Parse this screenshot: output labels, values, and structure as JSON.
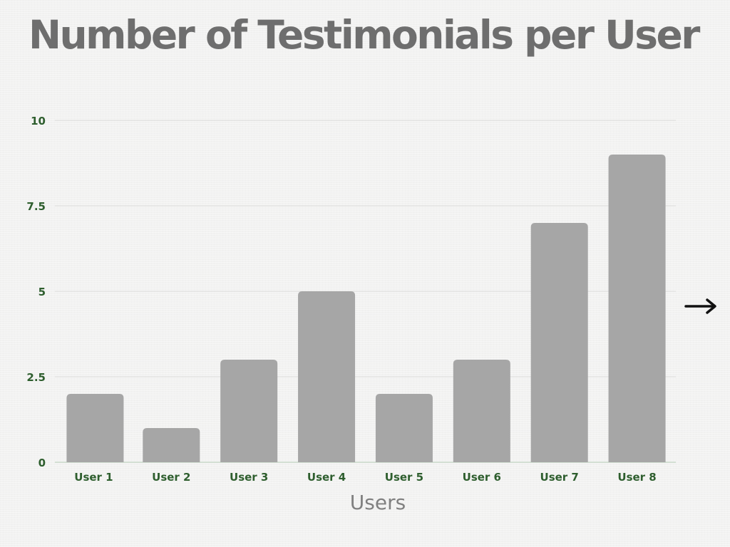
{
  "chart_data": {
    "type": "bar",
    "title": "Number of Testimonials per User",
    "xlabel": "Users",
    "ylabel": "",
    "categories": [
      "User 1",
      "User 2",
      "User 3",
      "User 4",
      "User 5",
      "User 6",
      "User 7",
      "User 8"
    ],
    "values": [
      2,
      1,
      3,
      5,
      2,
      3,
      7,
      9
    ],
    "ylim": [
      0,
      10
    ],
    "yticks": [
      "0",
      "2.5",
      "5",
      "7.5",
      "10"
    ],
    "grid": true,
    "legend": "none",
    "colors": {
      "bar": "#a6a6a6",
      "tick_label": "#2e5e2e",
      "title": "#6e6e6e",
      "axis_title": "#808080",
      "grid": "#dcdcdc"
    }
  },
  "navigation": {
    "next_icon": "arrow-right-icon"
  }
}
